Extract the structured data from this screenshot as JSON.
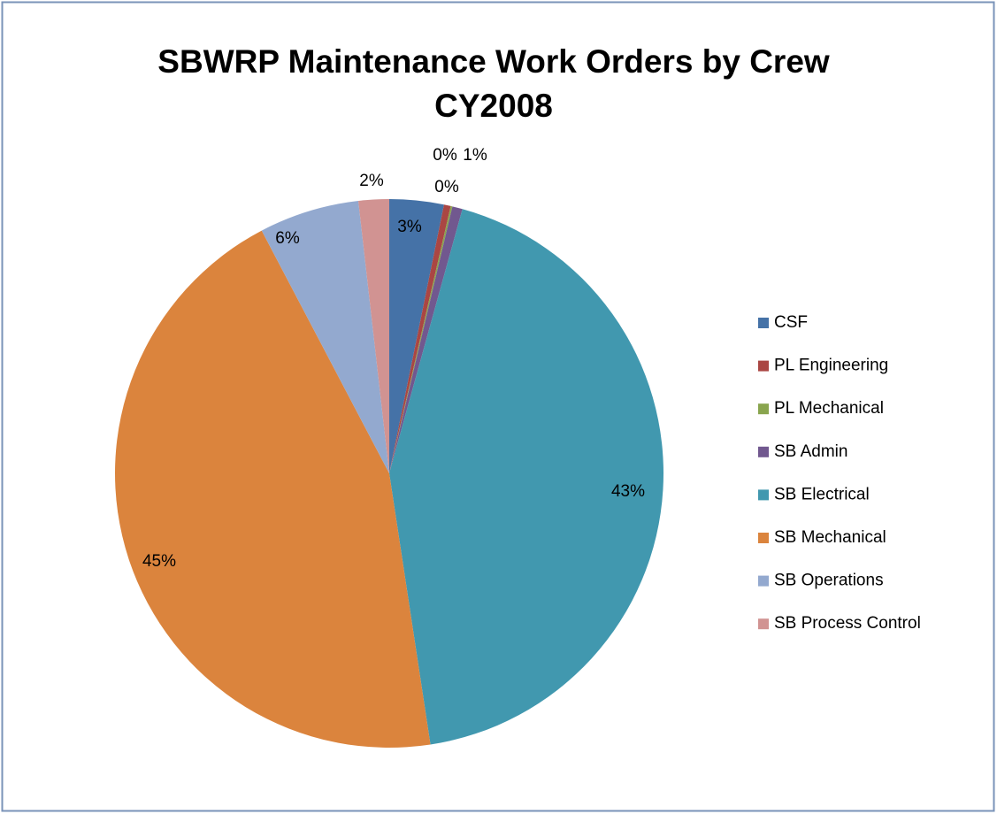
{
  "chart_data": {
    "type": "pie",
    "title": [
      "SBWRP Maintenance Work Orders by Crew",
      "CY2008"
    ],
    "categories": [
      "CSF",
      "PL Engineering",
      "PL Mechanical",
      "SB Admin",
      "SB Electrical",
      "SB Mechanical",
      "SB Operations",
      "SB Process Control"
    ],
    "values": [
      3.2,
      0.4,
      0.1,
      0.6,
      43.3,
      44.7,
      5.9,
      1.8
    ],
    "value_labels": [
      "3%",
      "0%",
      "0%",
      "1%",
      "43%",
      "45%",
      "6%",
      "2%"
    ],
    "colors": [
      "#4572A7",
      "#AA4643",
      "#89A54E",
      "#71588F",
      "#4198AF",
      "#DB843D",
      "#93A9CF",
      "#D19392"
    ],
    "legend": "right"
  }
}
